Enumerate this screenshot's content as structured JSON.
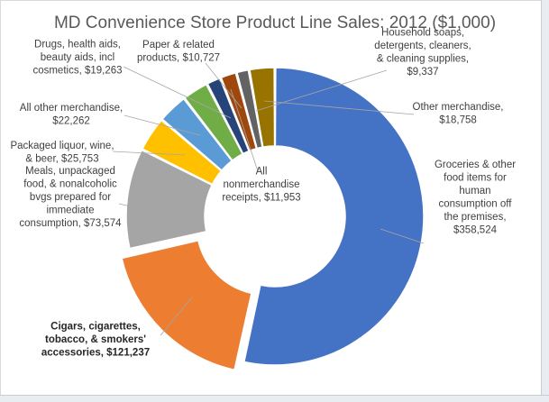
{
  "chart_data": {
    "type": "pie",
    "variant": "doughnut",
    "title": "MD Convenience Store Product Line Sales: 2012 ($1,000)",
    "categories": [
      "Groceries & other food items for human consumption off the premises",
      "Cigars, cigarettes, tobacco, & smokers' accessories",
      "Meals, unpackaged food, & nonalcoholic bvgs prepared for immediate consumption",
      "Packaged liquor, wine, & beer",
      "All other merchandise",
      "Drugs, health aids, beauty aids, incl cosmetics",
      "Paper & related products",
      "All nonmerchandise receipts",
      "Household soaps, detergents, cleaners, & cleaning supplies",
      "Other merchandise"
    ],
    "values": [
      358524,
      121237,
      73574,
      25753,
      22262,
      19263,
      10727,
      11953,
      9337,
      18758
    ],
    "colors": [
      "#4472c4",
      "#ed7d31",
      "#a5a5a5",
      "#ffc000",
      "#5b9bd5",
      "#70ad47",
      "#264478",
      "#9e480e",
      "#636363",
      "#997300"
    ],
    "exploded": "Cigars, cigarettes, tobacco, & smokers' accessories",
    "data_labels": [
      [
        "Groceries & other",
        "food items for",
        "human",
        "consumption off",
        "the premises,",
        "$358,524"
      ],
      [
        "Cigars, cigarettes,",
        "tobacco, & smokers'",
        "accessories, $121,237"
      ],
      [
        "Meals, unpackaged",
        "food, & nonalcoholic",
        "bvgs prepared for",
        "immediate",
        "consumption, $73,574"
      ],
      [
        "Packaged liquor, wine,",
        "& beer, $25,753"
      ],
      [
        "All other merchandise,",
        "$22,262"
      ],
      [
        "Drugs, health aids,",
        "beauty aids, incl",
        "cosmetics, $19,263"
      ],
      [
        "Paper & related",
        "products, $10,727"
      ],
      [
        "All",
        "nonmerchandise",
        "receipts, $11,953"
      ],
      [
        "Household soaps,",
        "detergents, cleaners,",
        "& cleaning supplies,",
        "$9,337"
      ],
      [
        "Other merchandise,",
        "$18,758"
      ]
    ],
    "legend": "none"
  }
}
